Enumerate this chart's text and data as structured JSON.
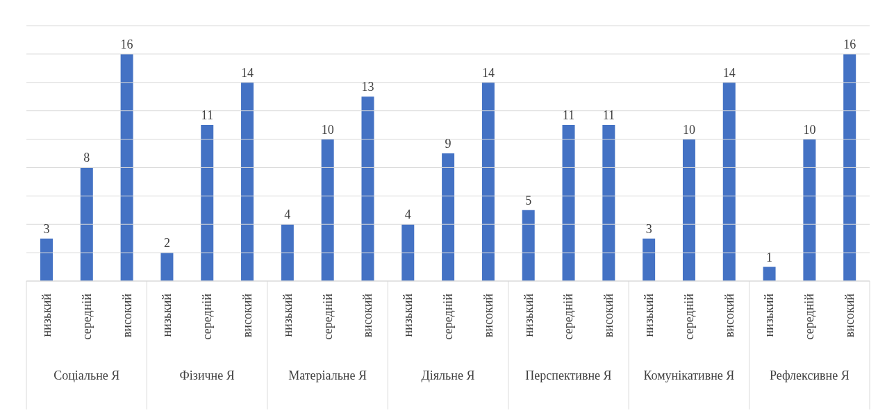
{
  "chart_data": {
    "type": "bar",
    "categories": [
      "низький",
      "середній",
      "високий",
      "низький",
      "середній",
      "високий",
      "низький",
      "середній",
      "високий",
      "низький",
      "середній",
      "високий",
      "низький",
      "середній",
      "високий",
      "низький",
      "середній",
      "високий",
      "низький",
      "середній",
      "високий"
    ],
    "values": [
      3,
      8,
      16,
      2,
      11,
      14,
      4,
      10,
      13,
      4,
      9,
      14,
      5,
      11,
      11,
      3,
      10,
      14,
      1,
      10,
      16
    ],
    "color": "#4472c4",
    "annotations": [
      "Соціальне Я",
      "Фізичне Я",
      "Матеріальне Я",
      "Діяльне Я",
      "Перспективне Я",
      "Комунікативне Я",
      "Рефлексивне Я"
    ],
    "ylim": [
      0,
      18
    ],
    "yticks": [
      {
        "value": 0,
        "label": null
      },
      {
        "value": 2,
        "label": null
      },
      {
        "value": 4,
        "label": null
      },
      {
        "value": 6,
        "label": null
      },
      {
        "value": 8,
        "label": null
      },
      {
        "value": 10,
        "label": null
      },
      {
        "value": 12,
        "label": null
      },
      {
        "value": 14,
        "label": null
      },
      {
        "value": 16,
        "label": null
      },
      {
        "value": 18,
        "label": null
      }
    ],
    "grid": "y",
    "data_labels": true,
    "tick_labels": "x"
  }
}
